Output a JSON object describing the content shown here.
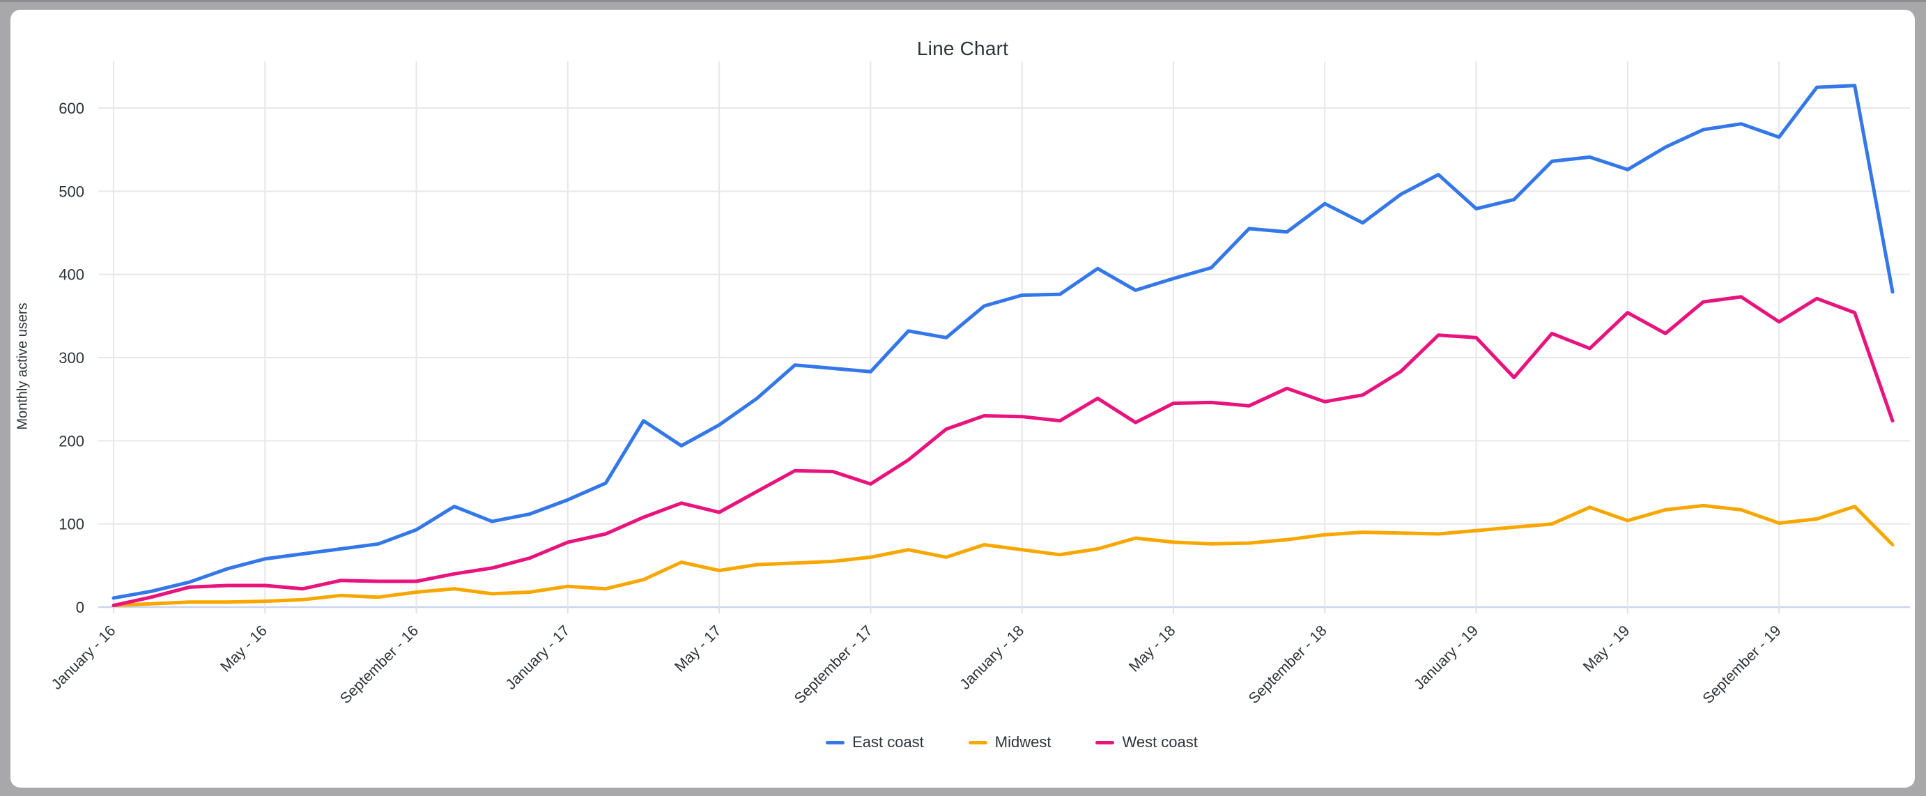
{
  "window": {
    "background_color": "#a8a8ab",
    "card_color": "#ffffff"
  },
  "chart_data": {
    "type": "line",
    "title": "Line Chart",
    "xlabel": "",
    "ylabel": "Monthly active users",
    "y_ticks": [
      0,
      100,
      200,
      300,
      400,
      500,
      600
    ],
    "ylim": [
      0,
      656
    ],
    "grid": true,
    "legend_position": "bottom",
    "x_tick_labels": [
      "January - 16",
      "May - 16",
      "September - 16",
      "January - 17",
      "May - 17",
      "September - 17",
      "January - 18",
      "May - 18",
      "September - 18",
      "January - 19",
      "May - 19",
      "September - 19"
    ],
    "x_tick_month_indices": [
      0,
      4,
      8,
      12,
      16,
      20,
      24,
      28,
      32,
      36,
      40,
      44
    ],
    "n_points": 48,
    "series": [
      {
        "name": "East coast",
        "color": "#3377e8",
        "values": [
          11,
          19,
          30,
          46,
          58,
          64,
          70,
          76,
          93,
          121,
          103,
          112,
          129,
          149,
          224,
          194,
          219,
          251,
          291,
          287,
          283,
          332,
          324,
          362,
          375,
          376,
          407,
          381,
          395,
          408,
          455,
          451,
          485,
          462,
          496,
          520,
          479,
          490,
          536,
          541,
          526,
          553,
          574,
          581,
          565,
          625,
          627,
          379
        ]
      },
      {
        "name": "Midwest",
        "color": "#f8a700",
        "values": [
          2,
          4,
          6,
          6,
          7,
          9,
          14,
          12,
          18,
          22,
          16,
          18,
          25,
          22,
          33,
          54,
          44,
          51,
          53,
          55,
          60,
          69,
          60,
          75,
          69,
          63,
          70,
          83,
          78,
          76,
          77,
          81,
          87,
          90,
          89,
          88,
          92,
          96,
          100,
          120,
          104,
          117,
          122,
          117,
          101,
          106,
          121,
          75
        ]
      },
      {
        "name": "West coast",
        "color": "#e8137d",
        "values": [
          2,
          12,
          24,
          26,
          26,
          22,
          32,
          31,
          31,
          40,
          47,
          59,
          78,
          88,
          108,
          125,
          114,
          139,
          164,
          163,
          148,
          177,
          214,
          230,
          229,
          224,
          251,
          222,
          245,
          246,
          242,
          263,
          247,
          255,
          283,
          327,
          324,
          276,
          329,
          311,
          354,
          329,
          367,
          373,
          343,
          371,
          354,
          224
        ]
      }
    ],
    "grid_color": "#e7e7e7",
    "axis_line_color": "#cbd5ec",
    "tick_text_color": "#2e3338"
  }
}
